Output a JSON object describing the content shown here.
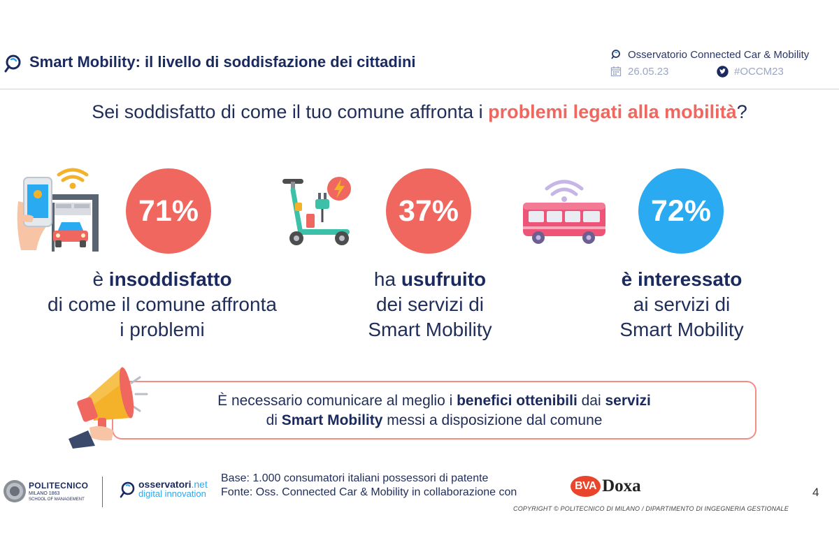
{
  "header": {
    "title": "Smart Mobility: il livello di soddisfazione dei cittadini",
    "observatory": "Osservatorio Connected Car & Mobility",
    "date": "26.05.23",
    "hashtag": "#OCCM23"
  },
  "question": {
    "before": "Sei soddisfatto di come il tuo comune affronta i ",
    "highlight": "problemi legati alla mobilità",
    "after": "?"
  },
  "stats": [
    {
      "value": "71%",
      "color": "#f0675f",
      "line1_pre": "è ",
      "line1_bold": "insoddisfatto",
      "line2": "di come il comune affronta",
      "line3": "i problemi",
      "icon": "smart-parking-icon"
    },
    {
      "value": "37%",
      "color": "#f0675f",
      "line1_pre": "ha ",
      "line1_bold": "usufruito",
      "line2": "dei servizi di",
      "line3": "Smart Mobility",
      "icon": "e-scooter-icon"
    },
    {
      "value": "72%",
      "color": "#2aaaf0",
      "line1_pre": "",
      "line1_bold": "è interessato",
      "line2": "ai servizi di",
      "line3": "Smart Mobility",
      "icon": "connected-bus-icon"
    }
  ],
  "callout": {
    "l1_a": "È necessario comunicare al meglio i ",
    "l1_b": "benefici ottenibili",
    "l1_c": " dai ",
    "l1_d": "servizi",
    "l2_a": "di ",
    "l2_b": "Smart Mobility",
    "l2_c": " messi a disposizione dal comune",
    "icon": "megaphone-icon"
  },
  "footer": {
    "polimi_name": "POLITECNICO",
    "polimi_sub1": "MILANO 1863",
    "polimi_sub2": "SCHOOL OF MANAGEMENT",
    "osservatori_name": "osservatori",
    "osservatori_tld": ".net",
    "osservatori_sub": "digital innovation",
    "base": "Base: 1.000 consumatori italiani possessori di patente",
    "source": "Fonte: Oss. Connected Car & Mobility in collaborazione con",
    "partner_bva": "BVA",
    "partner_doxa": "Doxa",
    "page": "4",
    "copyright": "COPYRIGHT © POLITECNICO DI MILANO / DIPARTIMENTO DI INGEGNERIA GESTIONALE"
  }
}
